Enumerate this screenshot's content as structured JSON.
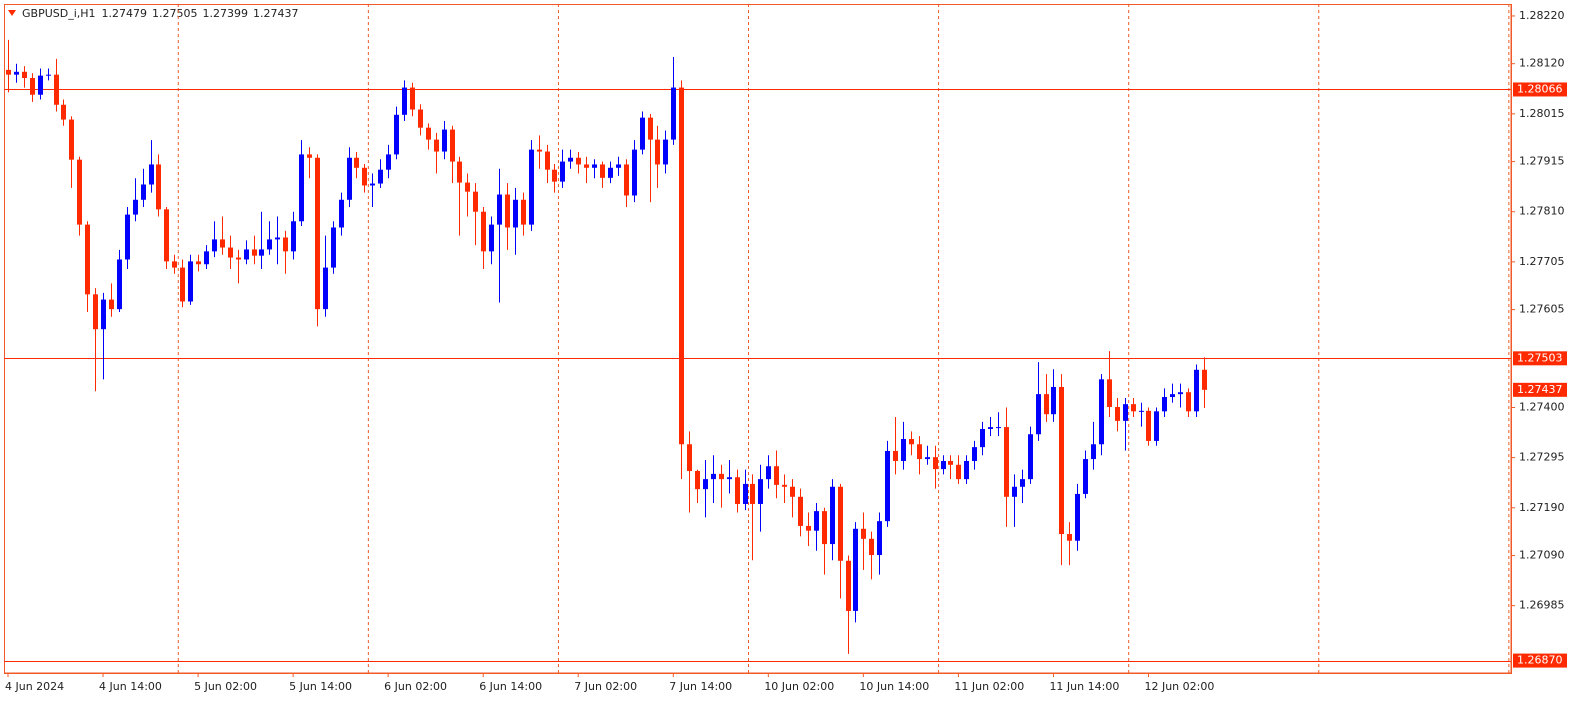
{
  "chart_data": {
    "type": "candlestick",
    "symbol": "GBPUSD_i,H1",
    "bull_color": "#0000ff",
    "bear_color": "#ff2a00",
    "period_separators": true,
    "categories": [
      "4 Jun 2024",
      null,
      null,
      null,
      null,
      null,
      null,
      null,
      null,
      null,
      null,
      null,
      "4 Jun 14:00",
      null,
      null,
      null,
      null,
      null,
      null,
      null,
      null,
      null,
      null,
      null,
      "5 Jun 02:00",
      null,
      null,
      null,
      null,
      null,
      null,
      null,
      null,
      null,
      null,
      null,
      "5 Jun 14:00",
      null,
      null,
      null,
      null,
      null,
      null,
      null,
      null,
      null,
      null,
      null,
      "6 Jun 02:00",
      null,
      null,
      null,
      null,
      null,
      null,
      null,
      null,
      null,
      null,
      null,
      "6 Jun 14:00",
      null,
      null,
      null,
      null,
      null,
      null,
      null,
      null,
      null,
      null,
      null,
      "7 Jun 02:00",
      null,
      null,
      null,
      null,
      null,
      null,
      null,
      null,
      null,
      null,
      null,
      "7 Jun 14:00",
      null,
      null,
      null,
      null,
      null,
      null,
      null,
      null,
      null,
      null,
      null,
      "10 Jun 02:00",
      null,
      null,
      null,
      null,
      null,
      null,
      null,
      null,
      null,
      null,
      null,
      "10 Jun 14:00",
      null,
      null,
      null,
      null,
      null,
      null,
      null,
      null,
      null,
      null,
      null,
      "11 Jun 02:00",
      null,
      null,
      null,
      null,
      null,
      null,
      null,
      null,
      null,
      null,
      null,
      "11 Jun 14:00",
      null,
      null,
      null,
      null,
      null,
      null,
      null,
      null,
      null,
      null,
      null,
      "12 Jun 02:00",
      null,
      null,
      null,
      null,
      null,
      null,
      null
    ],
    "open": [
      1.28107,
      1.28097,
      1.28103,
      1.2809,
      1.28055,
      1.28095,
      1.28097,
      1.28034,
      1.28003,
      1.27919,
      1.27783,
      1.27637,
      1.27564,
      1.27626,
      1.27606,
      1.2771,
      1.27804,
      1.27835,
      1.27867,
      1.27909,
      1.27815,
      1.27706,
      1.27693,
      1.27622,
      1.27706,
      1.277,
      1.27727,
      1.27752,
      1.27735,
      1.27714,
      1.2771,
      1.27731,
      1.27718,
      1.27731,
      1.27752,
      1.27756,
      1.27727,
      1.2779,
      1.2793,
      1.27923,
      1.27606,
      1.27693,
      1.27777,
      1.27835,
      1.27923,
      1.27902,
      1.27865,
      1.27869,
      1.27898,
      1.2793,
      1.28013,
      1.2807,
      1.28024,
      1.27986,
      1.27961,
      1.27936,
      1.27982,
      1.27915,
      1.27871,
      1.27852,
      1.2781,
      1.27727,
      1.27783,
      1.27846,
      1.27777,
      1.27835,
      1.27783,
      1.2794,
      1.27936,
      1.27898,
      1.27873,
      1.27915,
      1.27923,
      1.27909,
      1.27902,
      1.27909,
      1.27881,
      1.27902,
      1.27909,
      1.27844,
      1.2794,
      1.28007,
      1.27961,
      1.27909,
      1.27961,
      1.2807,
      1.27323,
      1.27267,
      1.27229,
      1.2725,
      1.27261,
      1.2725,
      1.27254,
      1.27198,
      1.2724,
      1.27198,
      1.2725,
      1.27277,
      1.27238,
      1.27234,
      1.27213,
      1.27152,
      1.27142,
      1.27183,
      1.27114,
      1.27234,
      1.27079,
      1.26974,
      1.27146,
      1.27125,
      1.27091,
      1.27162,
      1.27309,
      1.27288,
      1.27334,
      1.27323,
      1.27292,
      1.27296,
      1.27271,
      1.27288,
      1.2728,
      1.2725,
      1.27288,
      1.27317,
      1.27355,
      1.27359,
      1.27359,
      1.27213,
      1.27234,
      1.2725,
      1.27344,
      1.27428,
      1.27386,
      1.27443,
      1.27135,
      1.27121,
      1.27219,
      1.27292,
      1.27323,
      1.27459,
      1.27401,
      1.27372,
      1.27407,
      1.27392,
      1.27393,
      1.2733,
      1.27392,
      1.27422,
      1.27428,
      1.27432,
      1.27392,
      1.27479
    ],
    "high": [
      1.2817,
      1.2812,
      1.28115,
      1.281,
      1.2811,
      1.2811,
      1.2813,
      1.28045,
      1.2801,
      1.27925,
      1.2779,
      1.2765,
      1.2764,
      1.2766,
      1.2773,
      1.2782,
      1.2788,
      1.279,
      1.2796,
      1.2793,
      1.2782,
      1.2772,
      1.2771,
      1.2772,
      1.2772,
      1.2774,
      1.2779,
      1.278,
      1.2776,
      1.2773,
      1.2775,
      1.2776,
      1.2781,
      1.2779,
      1.278,
      1.2777,
      1.2781,
      1.2796,
      1.27945,
      1.2793,
      1.2776,
      1.2779,
      1.2785,
      1.27945,
      1.27935,
      1.2791,
      1.2789,
      1.2792,
      1.2795,
      1.2803,
      1.28085,
      1.2808,
      1.28035,
      1.27995,
      1.27975,
      1.28,
      1.2799,
      1.27925,
      1.2789,
      1.2787,
      1.2782,
      1.278,
      1.279,
      1.2787,
      1.2786,
      1.2785,
      1.2796,
      1.2797,
      1.2795,
      1.2791,
      1.2794,
      1.2794,
      1.27935,
      1.27925,
      1.2792,
      1.27915,
      1.27915,
      1.27925,
      1.2792,
      1.2796,
      1.2802,
      1.28015,
      1.2799,
      1.2798,
      1.28134,
      1.28085,
      1.2735,
      1.2727,
      1.2729,
      1.273,
      1.2728,
      1.2729,
      1.2727,
      1.2727,
      1.2726,
      1.2728,
      1.273,
      1.2731,
      1.2726,
      1.2725,
      1.2723,
      1.2718,
      1.272,
      1.2719,
      1.2725,
      1.2724,
      1.2709,
      1.2716,
      1.2718,
      1.2714,
      1.2718,
      1.2733,
      1.2738,
      1.2737,
      1.2735,
      1.2734,
      1.2732,
      1.2732,
      1.273,
      1.273,
      1.273,
      1.273,
      1.2733,
      1.2737,
      1.2738,
      1.2739,
      1.274,
      1.2726,
      1.2727,
      1.2736,
      1.27495,
      1.2747,
      1.2748,
      1.2747,
      1.2716,
      1.2724,
      1.2731,
      1.2737,
      1.2747,
      1.27518,
      1.2742,
      1.2742,
      1.2742,
      1.2741,
      1.274,
      1.274,
      1.2744,
      1.2745,
      1.2745,
      1.2744,
      1.2749,
      1.27505
    ],
    "low": [
      1.2806,
      1.2808,
      1.2807,
      1.2804,
      1.28045,
      1.28085,
      1.2802,
      1.2799,
      1.2786,
      1.2776,
      1.276,
      1.27434,
      1.27459,
      1.2759,
      1.276,
      1.2769,
      1.2779,
      1.2782,
      1.2785,
      1.278,
      1.2769,
      1.2768,
      1.2761,
      1.27615,
      1.27685,
      1.2769,
      1.27715,
      1.2772,
      1.2769,
      1.2766,
      1.277,
      1.277,
      1.2769,
      1.2772,
      1.277,
      1.2768,
      1.2771,
      1.2778,
      1.2788,
      1.2757,
      1.2759,
      1.2768,
      1.2776,
      1.2782,
      1.2788,
      1.2785,
      1.2782,
      1.2786,
      1.2788,
      1.2792,
      1.28,
      1.2801,
      1.2797,
      1.2794,
      1.2789,
      1.2792,
      1.2787,
      1.2776,
      1.278,
      1.2774,
      1.2769,
      1.277,
      1.2762,
      1.2773,
      1.2772,
      1.2776,
      1.2777,
      1.279,
      1.2787,
      1.2785,
      1.2786,
      1.279,
      1.2789,
      1.2787,
      1.2788,
      1.2786,
      1.2787,
      1.27885,
      1.2782,
      1.2783,
      1.2793,
      1.2783,
      1.2786,
      1.2789,
      1.2795,
      1.2725,
      1.2718,
      1.272,
      1.2717,
      1.272,
      1.2719,
      1.2722,
      1.2718,
      1.27185,
      1.2708,
      1.2714,
      1.2723,
      1.2721,
      1.272,
      1.2717,
      1.2713,
      1.2711,
      1.271,
      1.2705,
      1.2708,
      1.27,
      1.26884,
      1.2695,
      1.2706,
      1.2704,
      1.2705,
      1.2715,
      1.2726,
      1.2727,
      1.273,
      1.2726,
      1.2728,
      1.2723,
      1.2726,
      1.2725,
      1.2724,
      1.2724,
      1.2727,
      1.273,
      1.2734,
      1.2734,
      1.2715,
      1.2715,
      1.272,
      1.2724,
      1.2733,
      1.2737,
      1.2737,
      1.2707,
      1.2707,
      1.271,
      1.2721,
      1.2727,
      1.273,
      1.2738,
      1.2735,
      1.2731,
      1.2738,
      1.2736,
      1.2732,
      1.2732,
      1.2738,
      1.2741,
      1.274,
      1.2738,
      1.2738,
      1.27399
    ],
    "close": [
      1.28097,
      1.28103,
      1.2809,
      1.28055,
      1.28095,
      1.28097,
      1.28034,
      1.28003,
      1.27919,
      1.27783,
      1.27637,
      1.27564,
      1.27626,
      1.27606,
      1.2771,
      1.27804,
      1.27835,
      1.27867,
      1.27909,
      1.27815,
      1.27706,
      1.27693,
      1.27622,
      1.27706,
      1.277,
      1.27727,
      1.27752,
      1.27735,
      1.27714,
      1.2771,
      1.27731,
      1.27718,
      1.27731,
      1.27752,
      1.27756,
      1.27727,
      1.2779,
      1.2793,
      1.27923,
      1.27606,
      1.27693,
      1.27777,
      1.27835,
      1.27923,
      1.27902,
      1.27865,
      1.27869,
      1.27898,
      1.2793,
      1.28013,
      1.2807,
      1.28024,
      1.27986,
      1.27961,
      1.27936,
      1.27982,
      1.27915,
      1.27871,
      1.27852,
      1.2781,
      1.27727,
      1.27783,
      1.27846,
      1.27777,
      1.27835,
      1.27783,
      1.2794,
      1.27936,
      1.27898,
      1.27873,
      1.27915,
      1.27923,
      1.27909,
      1.27902,
      1.27909,
      1.27881,
      1.27902,
      1.27909,
      1.27844,
      1.2794,
      1.28007,
      1.27961,
      1.27909,
      1.27961,
      1.2807,
      1.27323,
      1.27267,
      1.27229,
      1.2725,
      1.27261,
      1.2725,
      1.27254,
      1.27198,
      1.2724,
      1.27198,
      1.2725,
      1.27277,
      1.27238,
      1.27234,
      1.27213,
      1.27152,
      1.27142,
      1.27183,
      1.27114,
      1.27234,
      1.27079,
      1.26974,
      1.27146,
      1.27125,
      1.27091,
      1.27162,
      1.27309,
      1.27288,
      1.27334,
      1.27323,
      1.27292,
      1.27296,
      1.27271,
      1.27288,
      1.2728,
      1.2725,
      1.27288,
      1.27317,
      1.27355,
      1.27359,
      1.27359,
      1.27213,
      1.27234,
      1.2725,
      1.27344,
      1.27428,
      1.27386,
      1.27443,
      1.27135,
      1.27121,
      1.27219,
      1.27292,
      1.27323,
      1.27459,
      1.27401,
      1.27372,
      1.27407,
      1.27392,
      1.27393,
      1.2733,
      1.27392,
      1.27422,
      1.27428,
      1.27432,
      1.27392,
      1.27479,
      1.27437
    ],
    "ylim": [
      1.26844,
      1.28245
    ],
    "yticks": [
      {
        "value": 1.2822,
        "label": "1.28220"
      },
      {
        "value": 1.2812,
        "label": "1.28120"
      },
      1.28015,
      1.27915,
      {
        "value": 1.2781,
        "label": "1.27810"
      },
      1.27705,
      1.27605,
      {
        "value": 1.274,
        "label": "1.27400"
      },
      1.27295,
      {
        "value": 1.2719,
        "label": "1.27190"
      },
      {
        "value": 1.2709,
        "label": "1.27090"
      },
      1.26985
    ],
    "hlines": [
      1.28066,
      1.27503,
      {
        "value": 1.2687,
        "label": "1.26870"
      }
    ],
    "line_color": "#ff2a00"
  }
}
